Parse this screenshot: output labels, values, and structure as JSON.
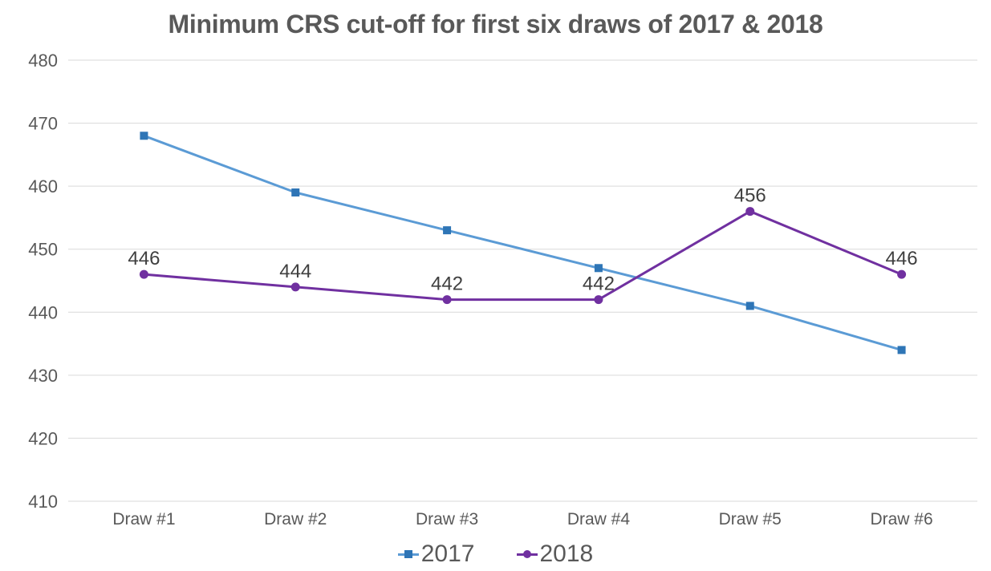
{
  "title": "Minimum CRS cut-off for first six draws of 2017 & 2018",
  "colors": {
    "background": "#ffffff",
    "title_text": "#595959",
    "axis_text": "#595959",
    "data_label_text": "#404040",
    "legend_text": "#595959",
    "gridline": "#d9d9d9"
  },
  "chart_data": {
    "type": "line",
    "title": "Minimum CRS cut-off for first six draws of 2017 & 2018",
    "categories": [
      "Draw #1",
      "Draw #2",
      "Draw #3",
      "Draw #4",
      "Draw #5",
      "Draw #6"
    ],
    "series": [
      {
        "name": "2017",
        "values": [
          468,
          459,
          453,
          447,
          441,
          434
        ],
        "marker": "square",
        "line_color": "#5b9bd5",
        "marker_color": "#2e75b6",
        "show_data_labels": false
      },
      {
        "name": "2018",
        "values": [
          446,
          444,
          442,
          442,
          456,
          446
        ],
        "marker": "circle",
        "line_color": "#7030a0",
        "marker_color": "#7030a0",
        "show_data_labels": true
      }
    ],
    "xlabel": "",
    "ylabel": "",
    "ylim": [
      410,
      480
    ],
    "ytick_step": 10,
    "grid": true,
    "legend_position": "bottom"
  },
  "legend": {
    "items": [
      {
        "label": "2017",
        "marker": "square"
      },
      {
        "label": "2018",
        "marker": "circle"
      }
    ]
  }
}
